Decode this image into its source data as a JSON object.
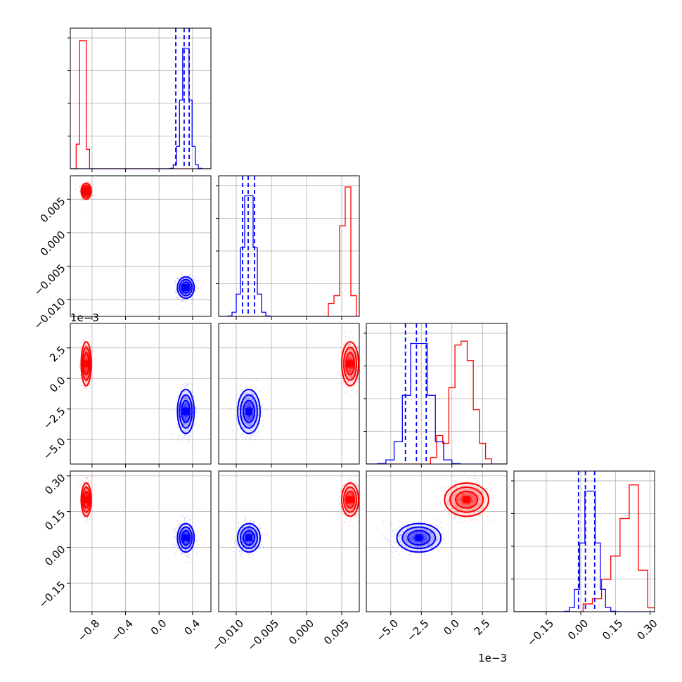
{
  "chart_data": {
    "type": "corner",
    "grid": true,
    "series": [
      {
        "color": "#ff0000",
        "means": [
          -0.87,
          0.0062,
          0.0012,
          0.2
        ],
        "stds": [
          0.03,
          0.0006,
          0.0009,
          0.035
        ],
        "hist_peaks": [
          {
            "x": [
              -0.97,
              -0.93,
              -0.89,
              -0.85,
              -0.81,
              -0.77
            ],
            "y": [
              0.19,
              0.99,
              0.99,
              0.15,
              0.0,
              0.0
            ]
          },
          {
            "x": [
              0.0035,
              0.0043,
              0.0051,
              0.0059,
              0.0067
            ],
            "y": [
              0.1,
              0.16,
              0.7,
              1.0,
              0.16
            ]
          },
          {
            "x": [
              -1.5,
              -1.0,
              -0.5,
              0.0,
              0.5,
              1.0,
              1.5,
              2.0,
              2.5,
              3.0,
              3.5
            ],
            "y": [
              0.05,
              0.22,
              0.16,
              0.59,
              0.92,
              0.95,
              0.8,
              0.42,
              0.16,
              0.04,
              0.0
            ]
          },
          {
            "x": [
              0.03,
              0.07,
              0.11,
              0.15,
              0.19,
              0.23,
              0.27,
              0.31
            ],
            "y": [
              0.06,
              0.1,
              0.25,
              0.43,
              0.72,
              0.98,
              0.32,
              0.03
            ]
          }
        ]
      },
      {
        "color": "#0000ff",
        "means": [
          0.32,
          -0.0082,
          -0.0027,
          0.04
        ],
        "stds": [
          0.05,
          0.0008,
          0.0009,
          0.03
        ],
        "quantiles_dashed": [
          [
            0.2,
            0.3,
            0.36
          ],
          [
            -0.0091,
            -0.0083,
            -0.0074
          ],
          [
            -3.8,
            -2.9,
            -2.1
          ],
          [
            -0.01,
            0.02,
            0.06
          ]
        ]
      }
    ],
    "panels": {
      "x_axes": [
        {
          "range": [
            -1.06,
            0.62
          ],
          "ticks": [
            "−0.8",
            "−0.4",
            "0.0",
            "0.4"
          ],
          "tick_values": [
            -0.8,
            -0.4,
            0.0,
            0.4
          ]
        },
        {
          "range": [
            -0.0125,
            0.0075
          ],
          "ticks": [
            "−0.010",
            "−0.005",
            "0.000",
            "0.005"
          ],
          "tick_values": [
            -0.01,
            -0.005,
            0.0,
            0.005
          ]
        },
        {
          "range": [
            -7.0,
            4.5
          ],
          "ticks": [
            "−5.0",
            "−2.5",
            "0.0",
            "2.5"
          ],
          "tick_values": [
            -5.0,
            -2.5,
            0.0,
            2.5
          ],
          "offset": "1e−3"
        },
        {
          "range": [
            -0.29,
            0.32
          ],
          "ticks": [
            "−0.15",
            "0.00",
            "0.15",
            "0.30"
          ],
          "tick_values": [
            -0.15,
            0.0,
            0.15,
            0.3
          ]
        }
      ],
      "y_axes": [
        {
          "range": [
            -0.0125,
            0.0085
          ],
          "ticks": [
            "−0.010",
            "−0.005",
            "0.000",
            "0.005"
          ],
          "tick_values": [
            -0.01,
            -0.005,
            0.0,
            0.005
          ]
        },
        {
          "range": [
            -7.0,
            4.5
          ],
          "ticks": [
            "−5.0",
            "−2.5",
            "0.0",
            "2.5"
          ],
          "tick_values": [
            -5.0,
            -2.5,
            0.0,
            2.5
          ],
          "offset": "1e−3"
        },
        {
          "range": [
            -0.27,
            0.32
          ],
          "ticks": [
            "−0.15",
            "0.00",
            "0.15",
            "0.30"
          ],
          "tick_values": [
            -0.15,
            0.0,
            0.15,
            0.3
          ]
        }
      ]
    }
  }
}
